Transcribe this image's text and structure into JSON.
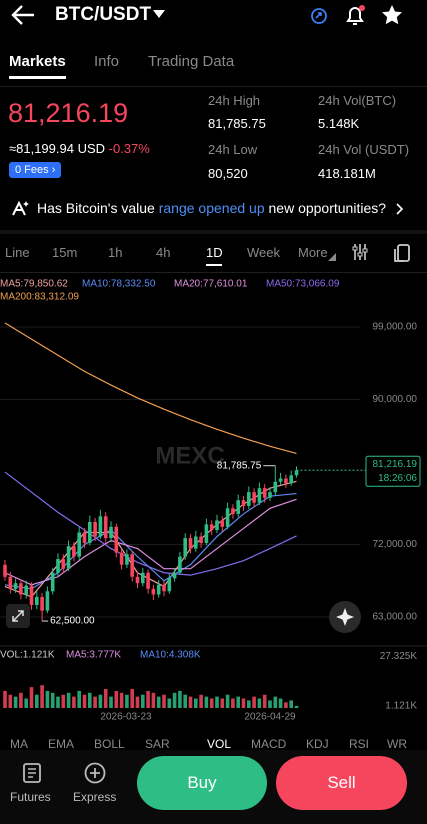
{
  "header": {
    "pair": "BTC/USDT"
  },
  "tabs": [
    "Markets",
    "Info",
    "Trading Data"
  ],
  "price": {
    "last": "81,216.19",
    "usd": "≈81,199.94 USD",
    "change": "-0.37%",
    "fees": "0 Fees"
  },
  "stats": [
    {
      "label": "24h High",
      "value": "81,785.75"
    },
    {
      "label": "24h Vol(BTC)",
      "value": "5.148K"
    },
    {
      "label": "24h Low",
      "value": "80,520"
    },
    {
      "label": "24h Vol (USDT)",
      "value": "418.181M"
    }
  ],
  "banner": {
    "pre": "Has Bitcoin's value",
    "link": "range opened up",
    "post": "new opportunities?"
  },
  "timeframes": [
    "Line",
    "15m",
    "1h",
    "4h",
    "1D",
    "Week",
    "More"
  ],
  "chart_data": {
    "type": "candlestick",
    "watermark": "MEXC",
    "up_color": "#2ebd85",
    "down_color": "#f6465d",
    "ylim": [
      60150,
      103600
    ],
    "yticks": [
      {
        "value": 99000,
        "label": "99,000.00"
      },
      {
        "value": 90000,
        "label": "90,000.00"
      },
      {
        "value": 72000,
        "label": "72,000.00"
      },
      {
        "value": 63000,
        "label": "63,000.00"
      }
    ],
    "candles": [
      [
        69500,
        70100,
        67500,
        68000
      ],
      [
        68000,
        68600,
        65900,
        66500
      ],
      [
        66500,
        67800,
        66000,
        67200
      ],
      [
        67200,
        67600,
        65200,
        65800
      ],
      [
        65800,
        67500,
        65300,
        66900
      ],
      [
        66900,
        67300,
        63900,
        64500
      ],
      [
        64500,
        66200,
        64000,
        65500
      ],
      [
        65500,
        66000,
        62500,
        63800
      ],
      [
        63800,
        66800,
        63500,
        66200
      ],
      [
        66200,
        69100,
        65800,
        68500
      ],
      [
        68500,
        70900,
        68000,
        70200
      ],
      [
        70200,
        70800,
        68400,
        69000
      ],
      [
        69000,
        72500,
        68700,
        71800
      ],
      [
        71800,
        72300,
        69900,
        70500
      ],
      [
        70500,
        74200,
        70100,
        73500
      ],
      [
        73500,
        74000,
        71600,
        72200
      ],
      [
        72200,
        75600,
        71900,
        74800
      ],
      [
        74800,
        75300,
        72400,
        73000
      ],
      [
        73000,
        76300,
        72700,
        75500
      ],
      [
        75500,
        76000,
        72200,
        72800
      ],
      [
        72800,
        74900,
        72300,
        74200
      ],
      [
        74200,
        74600,
        70400,
        71000
      ],
      [
        71000,
        71500,
        68900,
        69500
      ],
      [
        69500,
        71400,
        69100,
        70800
      ],
      [
        70800,
        71200,
        67400,
        68000
      ],
      [
        68000,
        68600,
        66600,
        67200
      ],
      [
        67200,
        69100,
        66800,
        68500
      ],
      [
        68500,
        68900,
        65900,
        66500
      ],
      [
        66500,
        67000,
        65100,
        65800
      ],
      [
        65800,
        67600,
        65400,
        67000
      ],
      [
        67000,
        67500,
        65600,
        66200
      ],
      [
        66200,
        68400,
        65900,
        67800
      ],
      [
        67800,
        69100,
        67400,
        68500
      ],
      [
        68500,
        71100,
        68200,
        70500
      ],
      [
        70500,
        73400,
        70100,
        72800
      ],
      [
        72800,
        73300,
        70900,
        71500
      ],
      [
        71500,
        73700,
        71100,
        73000
      ],
      [
        73000,
        73500,
        71600,
        72200
      ],
      [
        72200,
        75200,
        71900,
        74500
      ],
      [
        74500,
        75000,
        73200,
        73800
      ],
      [
        73800,
        75700,
        73400,
        75000
      ],
      [
        75000,
        75500,
        73600,
        74200
      ],
      [
        74200,
        77200,
        73900,
        76500
      ],
      [
        76500,
        77000,
        75200,
        75800
      ],
      [
        75800,
        78200,
        75400,
        77500
      ],
      [
        77500,
        78000,
        76200,
        76800
      ],
      [
        76800,
        79200,
        76400,
        78500
      ],
      [
        78500,
        79000,
        76600,
        77200
      ],
      [
        77200,
        79700,
        76900,
        79000
      ],
      [
        79000,
        79500,
        77200,
        77800
      ],
      [
        77800,
        79100,
        77400,
        78500
      ],
      [
        78500,
        81785.75,
        78100,
        79800
      ],
      [
        79800,
        80900,
        79400,
        80200
      ],
      [
        80200,
        80700,
        79000,
        79600
      ],
      [
        79600,
        81200,
        79300,
        80600
      ],
      [
        80600,
        81700,
        80300,
        81216.19
      ]
    ],
    "ma_lines": [
      {
        "label": "MA5:79,850.62",
        "color": "#f0a0a0",
        "x": [
          0,
          5,
          10,
          15,
          20,
          25,
          30,
          35,
          40,
          45,
          50,
          55
        ],
        "values": [
          66800,
          65500,
          69500,
          73500,
          73500,
          68500,
          66800,
          71500,
          74500,
          77000,
          79000,
          79850.62
        ]
      },
      {
        "label": "MA10:78,332.50",
        "color": "#5b8cf5",
        "x": [
          0,
          5,
          10,
          15,
          20,
          25,
          30,
          35,
          40,
          45,
          50,
          55
        ],
        "values": [
          67000,
          66500,
          68500,
          72000,
          73800,
          70500,
          67500,
          69500,
          73000,
          75800,
          78000,
          78332.5
        ]
      },
      {
        "label": "MA20:77,610.01",
        "color": "#e08ee0",
        "x": [
          0,
          5,
          10,
          15,
          20,
          25,
          30,
          35,
          40,
          45,
          50,
          55
        ],
        "values": [
          68500,
          67000,
          68000,
          70500,
          72500,
          71500,
          69000,
          69000,
          71500,
          74000,
          76500,
          77610.01
        ]
      },
      {
        "label": "MA50:73,066.09",
        "color": "#8a6cf0",
        "x": [
          0,
          5,
          10,
          15,
          20,
          25,
          30,
          35,
          40,
          45,
          50,
          55
        ],
        "values": [
          81000,
          78500,
          76000,
          73800,
          71500,
          69800,
          68500,
          68200,
          69000,
          70000,
          71500,
          73066.09
        ]
      },
      {
        "label": "MA200:83,312.09",
        "color": "#f0a050",
        "x": [
          0,
          5,
          10,
          15,
          20,
          25,
          30,
          35,
          40,
          45,
          50,
          55
        ],
        "values": [
          99500,
          97500,
          95500,
          93500,
          91800,
          90200,
          88800,
          87500,
          86300,
          85200,
          84200,
          83312.09
        ]
      }
    ],
    "high_marker": {
      "value": 81785.75,
      "label": "81,785.75"
    },
    "low_marker": {
      "value": 62500,
      "label": "62,500.00"
    },
    "last_price": {
      "value": 81216.19,
      "label": "81,216.19",
      "countdown": "18:26:06"
    },
    "x_labels": [
      "2026-03-23",
      "2026-04-29"
    ],
    "volume": {
      "label": "VOL:1.121K",
      "ma_labels": [
        {
          "text": "MA5:3.777K",
          "color": "#e08ee0"
        },
        {
          "text": "MA10:4.308K",
          "color": "#5b8cf5"
        }
      ],
      "ylim": [
        0,
        29.5
      ],
      "yticks": [
        {
          "value": 27.325,
          "label": "27.325K"
        },
        {
          "value": 1.121,
          "label": "1.121K"
        }
      ],
      "values": [
        9,
        7,
        6,
        8,
        5,
        11,
        7,
        12,
        9,
        8,
        6,
        7,
        8,
        6,
        9,
        7,
        8,
        6,
        7,
        10,
        6,
        9,
        8,
        7,
        10,
        6,
        7,
        9,
        8,
        6,
        7,
        5,
        8,
        9,
        7,
        6,
        5,
        7,
        6,
        5,
        6,
        5,
        7,
        5,
        6,
        5,
        4,
        6,
        5,
        7,
        4,
        6,
        5,
        3,
        4,
        1.121
      ]
    }
  },
  "indicators": {
    "main": [
      "MA",
      "EMA",
      "BOLL",
      "SAR"
    ],
    "sub": [
      "VOL",
      "MACD",
      "KDJ",
      "RSI",
      "WR"
    ]
  },
  "nav": {
    "futures": "Futures",
    "express": "Express",
    "buy": "Buy",
    "sell": "Sell"
  }
}
